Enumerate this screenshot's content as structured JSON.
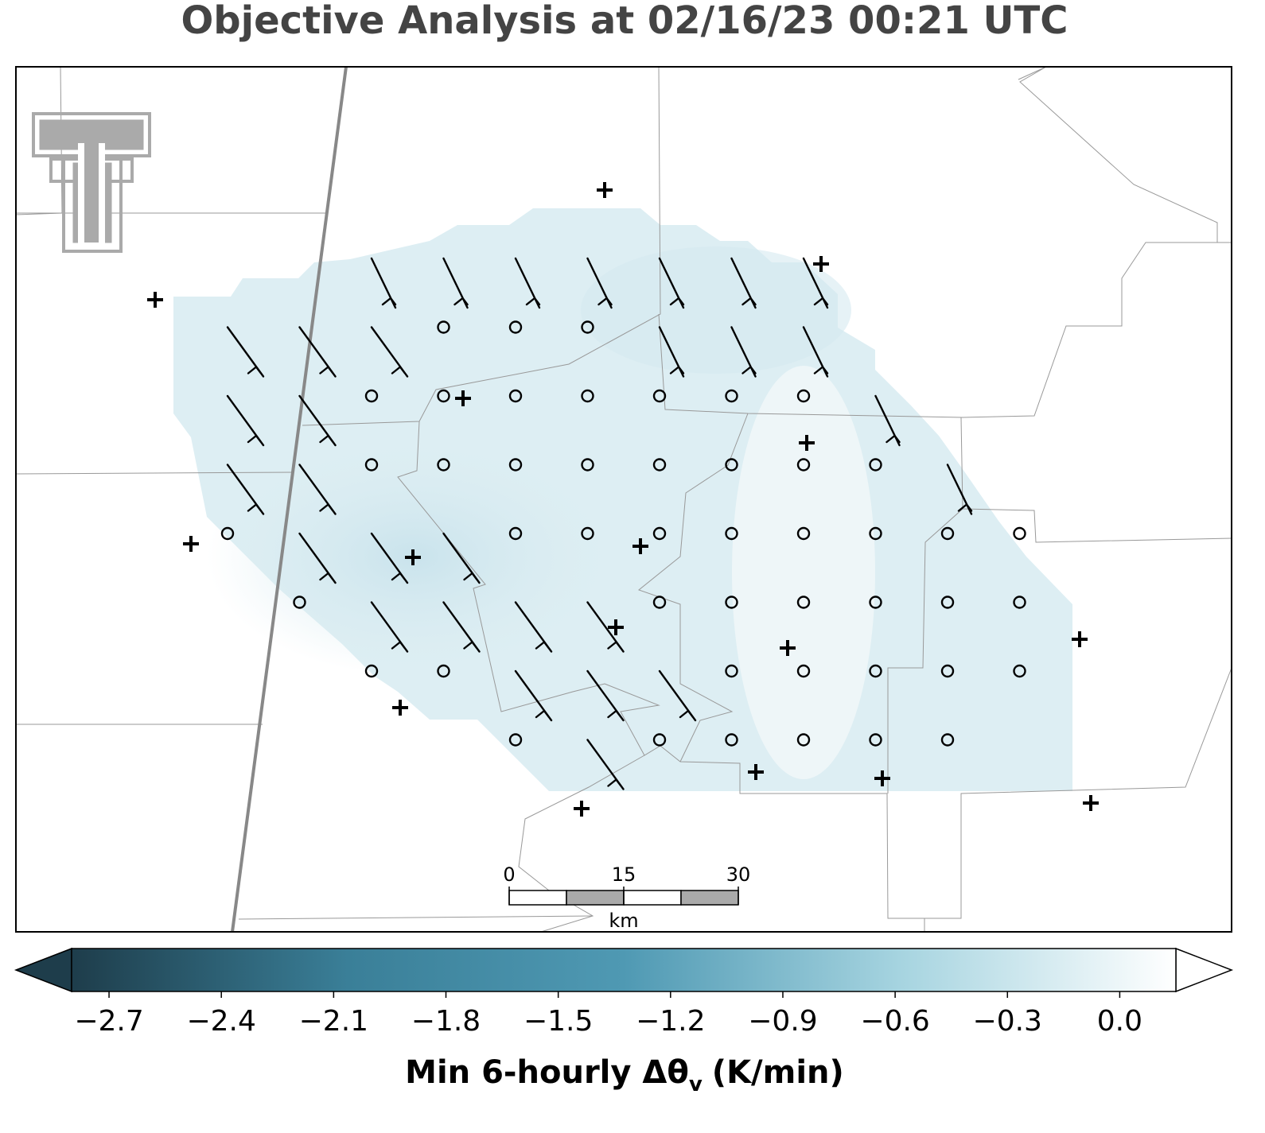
{
  "title": "Objective Analysis at 02/16/23 00:21 UTC",
  "colorbar": {
    "label": "Min 6-hourly Δθ",
    "label_subscript": "v",
    "label_units": "(K/min)",
    "lim": [
      -2.8,
      0.15
    ],
    "colormap": [
      "#1e3d4b",
      "#3a7f98",
      "#4f99b3",
      "#a6d4e0",
      "#ffffff"
    ],
    "ticks": [
      {
        "value": -2.7,
        "label": "−2.7"
      },
      {
        "value": -2.4,
        "label": "−2.4"
      },
      {
        "value": -2.1,
        "label": "−2.1"
      },
      {
        "value": -1.8,
        "label": "−1.8"
      },
      {
        "value": -1.5,
        "label": "−1.5"
      },
      {
        "value": -1.2,
        "label": "−1.2"
      },
      {
        "value": -0.9,
        "label": "−0.9"
      },
      {
        "value": -0.6,
        "label": "−0.6"
      },
      {
        "value": -0.3,
        "label": "−0.3"
      },
      {
        "value": 0.0,
        "label": "0.0"
      }
    ]
  },
  "scale_bar": {
    "ticks": [
      0,
      15,
      30
    ],
    "unit": "km"
  }
}
